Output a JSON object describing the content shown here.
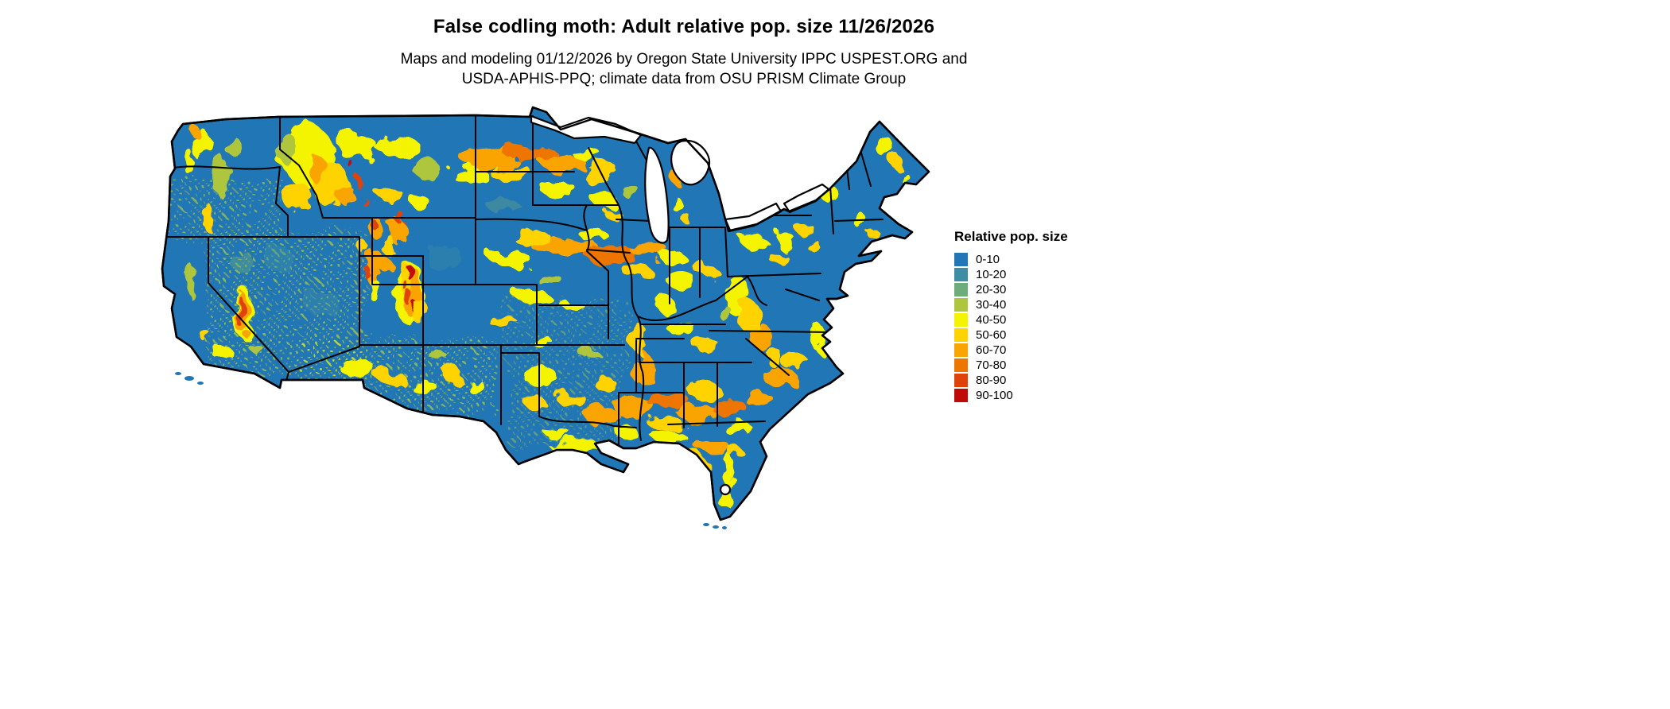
{
  "title": "False codling moth: Adult relative pop. size 11/26/2026",
  "subtitle": {
    "line1": "Maps and modeling 01/12/2026 by Oregon State University IPPC USPEST.ORG and",
    "line2": "USDA-APHIS-PPQ; climate data from OSU PRISM Climate Group"
  },
  "legend": {
    "title": "Relative pop. size",
    "items": [
      {
        "label": "0-10",
        "color": "#2176B5"
      },
      {
        "label": "10-20",
        "color": "#3C8EA4"
      },
      {
        "label": "20-30",
        "color": "#6DAD7C"
      },
      {
        "label": "30-40",
        "color": "#ADC63E"
      },
      {
        "label": "40-50",
        "color": "#F4F400"
      },
      {
        "label": "50-60",
        "color": "#FFD300"
      },
      {
        "label": "60-70",
        "color": "#F9A400"
      },
      {
        "label": "70-80",
        "color": "#EE7500"
      },
      {
        "label": "80-90",
        "color": "#E04309"
      },
      {
        "label": "90-100",
        "color": "#C00A0A"
      }
    ]
  },
  "map": {
    "base_color": "#2176B5",
    "border_color": "#000000",
    "water_color": "#FFFFFF"
  }
}
